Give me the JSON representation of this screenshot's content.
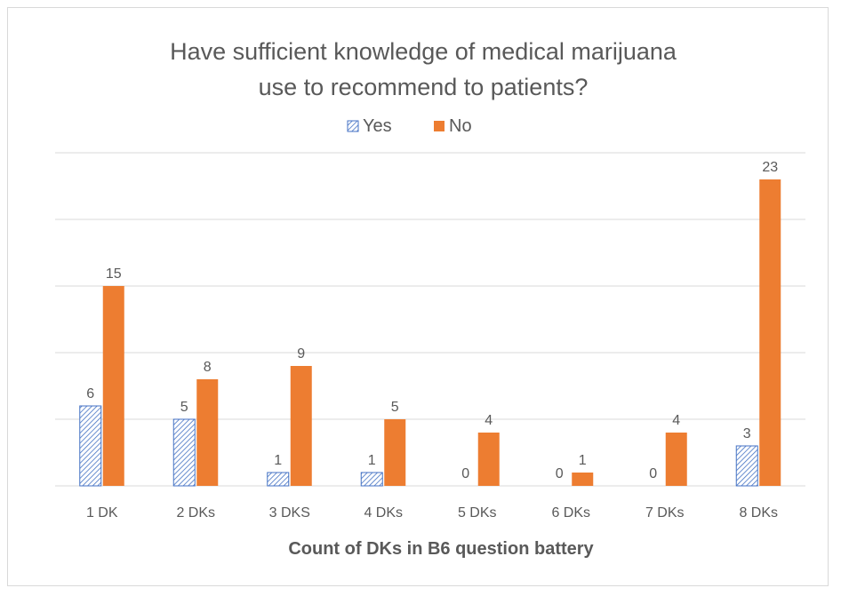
{
  "colors": {
    "yes": "#4472c4",
    "no": "#ed7d31",
    "grid": "#d9d9d9",
    "text": "#595959"
  },
  "chart_data": {
    "type": "bar",
    "title": [
      "Have sufficient knowledge of medical marijuana",
      "use to recommend to patients?"
    ],
    "xlabel": "Count of DKs in B6 question battery",
    "ylabel": "",
    "categories": [
      "1 DK",
      "2 DKs",
      "3 DKS",
      "4 DKs",
      "5 DKs",
      "6 DKs",
      "7 DKs",
      "8 DKs"
    ],
    "series": [
      {
        "name": "Yes",
        "pattern": "hatched",
        "values": [
          6,
          5,
          1,
          1,
          0,
          0,
          0,
          3
        ]
      },
      {
        "name": "No",
        "pattern": "solid",
        "values": [
          15,
          8,
          9,
          5,
          4,
          1,
          4,
          23
        ]
      }
    ],
    "ylim": [
      0,
      25
    ],
    "grid": true,
    "legend": "top-center",
    "data_labels": true
  }
}
